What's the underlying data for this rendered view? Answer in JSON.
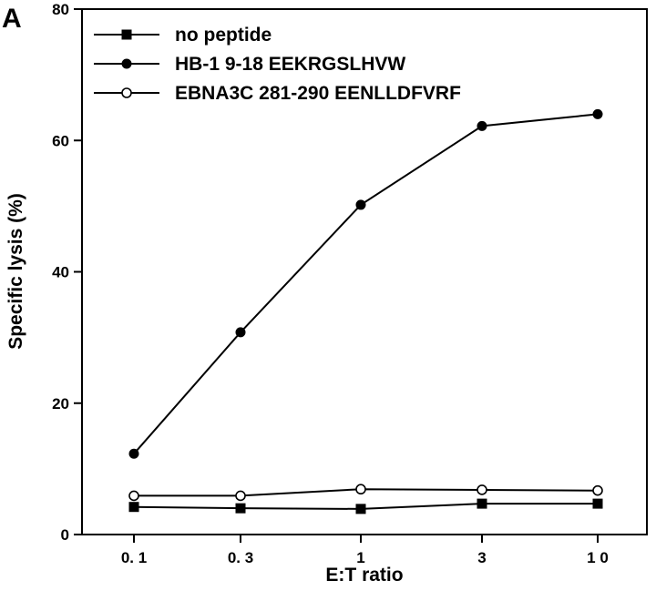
{
  "panel_label": "A",
  "chart_data": {
    "type": "line",
    "xlabel": "E:T ratio",
    "ylabel": "Specific lysis (%)",
    "categories": [
      "0.1",
      "0.3",
      "1",
      "3",
      "10"
    ],
    "x_tick_labels": [
      "0. 1",
      "0. 3",
      "1",
      "3",
      "1 0"
    ],
    "y_ticks": [
      "0",
      "20",
      "40",
      "60",
      "80"
    ],
    "ylim": [
      0,
      80
    ],
    "grid": false,
    "legend_position": "top-left",
    "series": [
      {
        "name": "no peptide",
        "marker": "filled-square",
        "values": [
          4.2,
          4.0,
          3.9,
          4.7,
          4.7
        ]
      },
      {
        "name": "HB-1 9-18 EEKRGSLHVW",
        "marker": "filled-circle",
        "values": [
          12.3,
          30.8,
          50.2,
          62.2,
          64.0
        ]
      },
      {
        "name": "EBNA3C 281-290 EENLLDFVRF",
        "marker": "open-circle",
        "values": [
          5.9,
          5.9,
          6.9,
          6.8,
          6.7
        ]
      }
    ]
  }
}
